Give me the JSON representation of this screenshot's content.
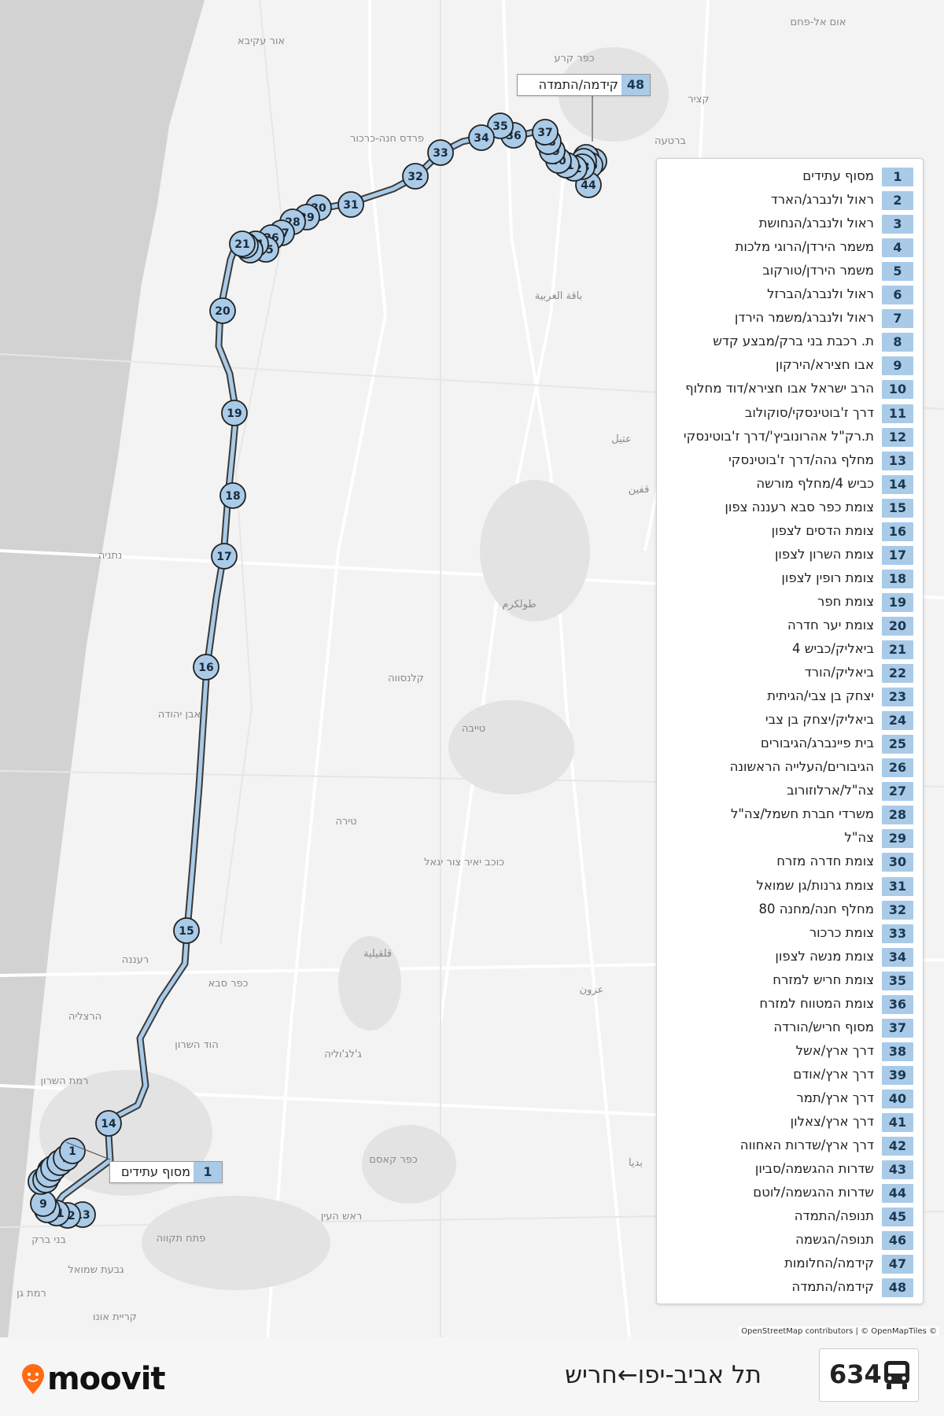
{
  "line": {
    "number": "634",
    "route": "תל אביב-יפו←חריש"
  },
  "brand": {
    "name": "moovit",
    "color": "#ff6a13"
  },
  "attribution": "OpenStreetMap contributors | © OpenMapTiles ©",
  "colors": {
    "route": "#a9cbe8",
    "stop_fill": "#a9cbe8",
    "stop_border": "#222222",
    "sea": "#d0d0d0",
    "land": "#f3f3f3"
  },
  "map_labels": {
    "or_akiva": "אור עקיבא",
    "um_al_fahm": "אום אל-פחם",
    "kfar_kara": "כפר קרע",
    "katzir": "קציר",
    "pardes_hanna": "פרדס חנה-כרכור",
    "barta": "ברטעה",
    "baqa": "باقة الغربية",
    "attil": "عتيل",
    "qaffin": "قفين",
    "netanya": "נתניה",
    "tulkarm": "طولكرم",
    "kalansua": "קלנסווה",
    "even_yehuda": "אבן יהודה",
    "tayibe": "טייבה",
    "tira": "טירה",
    "kochav_yair": "כוכב יאיר צור יגאל",
    "raanana": "רעננה",
    "qalqilya": "قلقيلية",
    "kfar_saba": "כפר סבא",
    "azzun": "عزون",
    "herzliya": "הרצליה",
    "hod_hasharon": "הוד השרון",
    "jaljulia": "ג'לג'וליה",
    "ramat_hasharon": "רמת השרון",
    "kafr_qasim": "כפר קאסם",
    "rosh_haayin": "ראש העין",
    "bidya": "بديا",
    "bnei_brak": "בני ברק",
    "petah_tikva": "פתח תקווה",
    "givat_shmuel": "גבעת שמואל",
    "ramat_gan": "רמת גן",
    "kiryat_ono": "קריית אונו"
  },
  "callouts": [
    {
      "num": "48",
      "label": "קידמה/התמדה"
    },
    {
      "num": "1",
      "label": "מסוף עתידים"
    }
  ],
  "stops": [
    {
      "num": "1",
      "name": "מסוף עתידים"
    },
    {
      "num": "2",
      "name": "ראול ולנברג/הארד"
    },
    {
      "num": "3",
      "name": "ראול ולנברג/הנחושת"
    },
    {
      "num": "4",
      "name": "משמר הירדן/הרוגי מלכות"
    },
    {
      "num": "5",
      "name": "משמר הירדן/טורקוב"
    },
    {
      "num": "6",
      "name": "ראול ולנברג/הברזל"
    },
    {
      "num": "7",
      "name": "ראול ולנברג/משמר הירדן"
    },
    {
      "num": "8",
      "name": "ת. רכבת בני ברק/מבצע קדש"
    },
    {
      "num": "9",
      "name": "אבו חצירא/הירקון"
    },
    {
      "num": "10",
      "name": "הרב ישראל אבו חצירא/דוד מחלוף"
    },
    {
      "num": "11",
      "name": "דרך ז'בוטינסקי/סוקולוב"
    },
    {
      "num": "12",
      "name": "ת.רק\"ל אהרונוביץ'/דרך ז'בוטינסקי"
    },
    {
      "num": "13",
      "name": "מחלף גהה/דרך ז'בוטינסקי"
    },
    {
      "num": "14",
      "name": "כביש 4/מחלף מורשה"
    },
    {
      "num": "15",
      "name": "צומת כפר סבא רעננה צפון"
    },
    {
      "num": "16",
      "name": "צומת הדסים לצפון"
    },
    {
      "num": "17",
      "name": "צומת השרון לצפון"
    },
    {
      "num": "18",
      "name": "צומת רופין לצפון"
    },
    {
      "num": "19",
      "name": "צומת חפר"
    },
    {
      "num": "20",
      "name": "צומת יער חדרה"
    },
    {
      "num": "21",
      "name": "ביאליק/כביש 4"
    },
    {
      "num": "22",
      "name": "ביאליק/הורד"
    },
    {
      "num": "23",
      "name": "יצחק בן צבי/הגיתית"
    },
    {
      "num": "24",
      "name": "ביאליק/יצחק בן צבי"
    },
    {
      "num": "25",
      "name": "בית פיינברג/הגיבורים"
    },
    {
      "num": "26",
      "name": "הגיבורים/העלייה הראשונה"
    },
    {
      "num": "27",
      "name": "צה\"ל/ארלוזורוב"
    },
    {
      "num": "28",
      "name": "משרדי חברת חשמל/צה\"ל"
    },
    {
      "num": "29",
      "name": "צה\"ל"
    },
    {
      "num": "30",
      "name": "צומת חדרה מזרח"
    },
    {
      "num": "31",
      "name": "צומת גרנות/גן שמואל"
    },
    {
      "num": "32",
      "name": "מחלף חנה/מחנה 80"
    },
    {
      "num": "33",
      "name": "צומת כרכור"
    },
    {
      "num": "34",
      "name": "צומת מנשה לצפון"
    },
    {
      "num": "35",
      "name": "צומת חריש למזרח"
    },
    {
      "num": "36",
      "name": "צומת המטווח למזרח"
    },
    {
      "num": "37",
      "name": "מסוף חריש/הורדה"
    },
    {
      "num": "38",
      "name": "דרך ארץ/אשל"
    },
    {
      "num": "39",
      "name": "דרך ארץ/אודם"
    },
    {
      "num": "40",
      "name": "דרך ארץ/תמר"
    },
    {
      "num": "41",
      "name": "דרך ארץ/צאלון"
    },
    {
      "num": "42",
      "name": "דרך ארץ/שדרות האחווה"
    },
    {
      "num": "43",
      "name": "שדרות ההגשמה/סביון"
    },
    {
      "num": "44",
      "name": "שדרות ההגשמה/לוטם"
    },
    {
      "num": "45",
      "name": "תנופה/התמדה"
    },
    {
      "num": "46",
      "name": "תנופה/הגשמה"
    },
    {
      "num": "47",
      "name": "קידמה/החלומות"
    },
    {
      "num": "48",
      "name": "קידמה/התמדה"
    }
  ]
}
